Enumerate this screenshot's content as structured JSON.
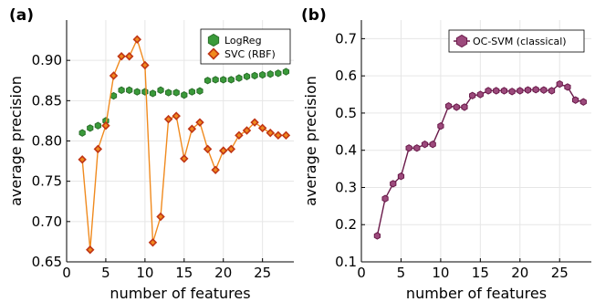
{
  "chart_data": [
    {
      "panel": "(a)",
      "type": "line",
      "xlabel": "number of features",
      "ylabel": "average precision",
      "xlim": [
        0,
        29
      ],
      "ylim": [
        0.65,
        0.95
      ],
      "xticks": [
        0,
        5,
        10,
        15,
        20,
        25
      ],
      "yticks": [
        0.65,
        0.7,
        0.75,
        0.8,
        0.85,
        0.9
      ],
      "ytick_labels": [
        "0.65",
        "0.70",
        "0.75",
        "0.80",
        "0.85",
        "0.90"
      ],
      "grid": true,
      "legend_position": "top-right",
      "x": [
        2,
        3,
        4,
        5,
        6,
        7,
        8,
        9,
        10,
        11,
        12,
        13,
        14,
        15,
        16,
        17,
        18,
        19,
        20,
        21,
        22,
        23,
        24,
        25,
        26,
        27,
        28
      ],
      "series": [
        {
          "name": "LogReg",
          "color": "#3a9a3a",
          "edge_color": "#2a6e2a",
          "marker": "hexagon",
          "line": false,
          "values": [
            0.81,
            0.816,
            0.819,
            0.825,
            0.856,
            0.863,
            0.863,
            0.861,
            0.861,
            0.859,
            0.863,
            0.86,
            0.86,
            0.857,
            0.861,
            0.862,
            0.875,
            0.876,
            0.876,
            0.876,
            0.878,
            0.88,
            0.881,
            0.882,
            0.883,
            0.884,
            0.886
          ]
        },
        {
          "name": "SVC (RBF)",
          "color": "#f08a1e",
          "edge_color": "#c03515",
          "marker": "diamond",
          "line": true,
          "values": [
            0.777,
            0.665,
            0.79,
            0.819,
            0.881,
            0.905,
            0.905,
            0.926,
            0.894,
            0.674,
            0.706,
            0.827,
            0.831,
            0.778,
            0.815,
            0.823,
            0.79,
            0.764,
            0.788,
            0.79,
            0.807,
            0.813,
            0.823,
            0.816,
            0.81,
            0.807,
            0.807
          ]
        }
      ]
    },
    {
      "panel": "(b)",
      "type": "line",
      "xlabel": "number of features",
      "ylabel": "average precision",
      "xlim": [
        0,
        29
      ],
      "ylim": [
        0.1,
        0.75
      ],
      "xticks": [
        0,
        5,
        10,
        15,
        20,
        25
      ],
      "yticks": [
        0.1,
        0.2,
        0.3,
        0.4,
        0.5,
        0.6,
        0.7
      ],
      "ytick_labels": [
        "0.1",
        "0.2",
        "0.3",
        "0.4",
        "0.5",
        "0.6",
        "0.7"
      ],
      "grid": true,
      "legend_position": "top-right",
      "x": [
        2,
        3,
        4,
        5,
        6,
        7,
        8,
        9,
        10,
        11,
        12,
        13,
        14,
        15,
        16,
        17,
        18,
        19,
        20,
        21,
        22,
        23,
        24,
        25,
        26,
        27,
        28
      ],
      "series": [
        {
          "name": "OC-SVM (classical)",
          "color": "#6a1a4a",
          "edge_color": "#6a1a4a",
          "marker_fill": "#9c4a7c",
          "marker": "hexagon",
          "line": true,
          "values": [
            0.17,
            0.27,
            0.31,
            0.33,
            0.406,
            0.406,
            0.416,
            0.416,
            0.465,
            0.519,
            0.516,
            0.516,
            0.547,
            0.55,
            0.56,
            0.56,
            0.56,
            0.558,
            0.56,
            0.562,
            0.563,
            0.562,
            0.56,
            0.578,
            0.57,
            0.535,
            0.53
          ]
        }
      ]
    }
  ]
}
